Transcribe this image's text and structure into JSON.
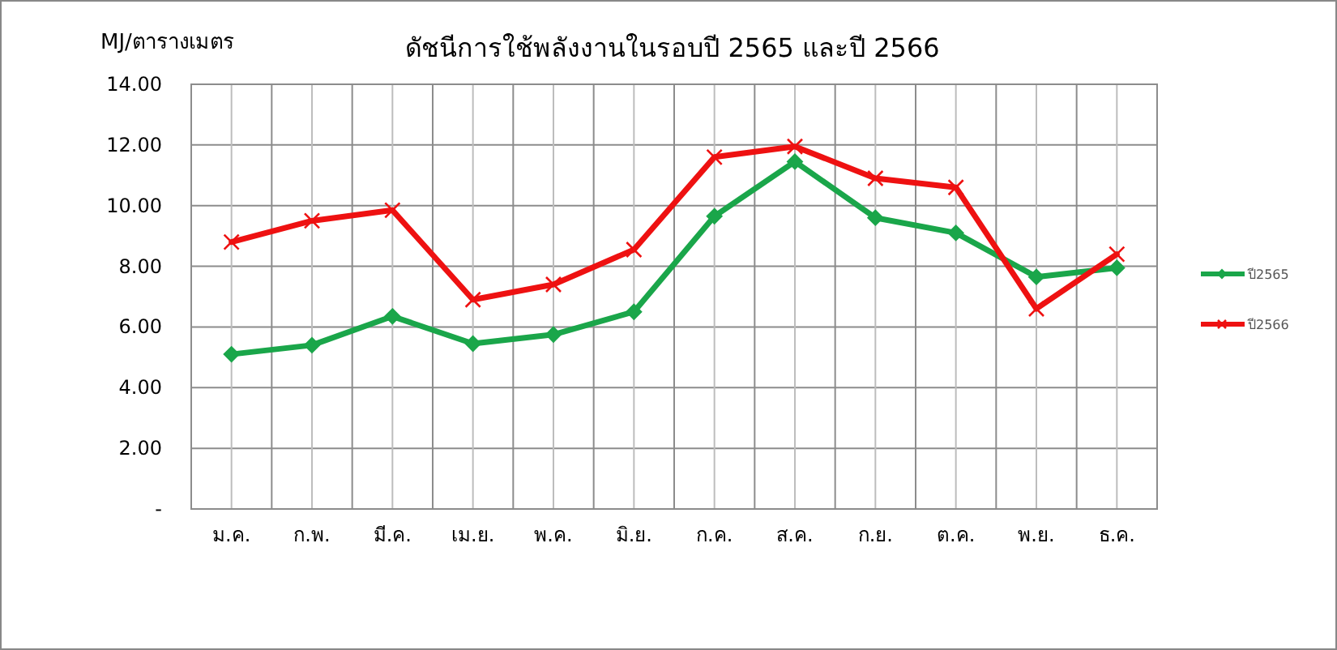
{
  "chart_data": {
    "type": "line",
    "title": "ดัชนีการใช้พลังงานในรอบปี  2565 และปี 2566",
    "ylabel": "MJ/ตารางเมตร",
    "categories": [
      "ม.ค.",
      "ก.พ.",
      "มี.ค.",
      "เม.ย.",
      "พ.ค.",
      "มิ.ย.",
      "ก.ค.",
      "ส.ค.",
      "ก.ย.",
      "ต.ค.",
      "พ.ย.",
      "ธ.ค."
    ],
    "series": [
      {
        "name": "ปี2565",
        "color": "#1aa64a",
        "marker": "diamond",
        "values": [
          5.1,
          5.4,
          6.35,
          5.45,
          5.75,
          6.5,
          9.65,
          11.45,
          9.6,
          9.1,
          7.65,
          7.95
        ]
      },
      {
        "name": "ปี2566",
        "color": "#ee1111",
        "marker": "cross",
        "values": [
          8.8,
          9.5,
          9.85,
          6.9,
          7.4,
          8.55,
          11.6,
          11.95,
          10.9,
          10.6,
          6.6,
          8.4
        ]
      }
    ],
    "ylim": [
      0,
      14
    ],
    "yticks": [
      {
        "value": 0,
        "label": "-"
      },
      {
        "value": 2,
        "label": "2.00"
      },
      {
        "value": 4,
        "label": "4.00"
      },
      {
        "value": 6,
        "label": "6.00"
      },
      {
        "value": 8,
        "label": "8.00"
      },
      {
        "value": 10,
        "label": "10.00"
      },
      {
        "value": 12,
        "label": "12.00"
      },
      {
        "value": 14,
        "label": "14.00"
      }
    ],
    "grid": true,
    "legend": "right",
    "line_style": "solid"
  }
}
